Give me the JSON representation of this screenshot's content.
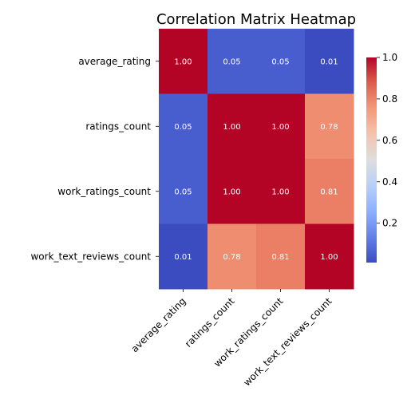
{
  "chart_data": {
    "type": "heatmap",
    "title": "Correlation Matrix Heatmap",
    "xlabel": "",
    "ylabel": "",
    "rows": [
      "average_rating",
      "ratings_count",
      "work_ratings_count",
      "work_text_reviews_count"
    ],
    "columns": [
      "average_rating",
      "ratings_count",
      "work_ratings_count",
      "work_text_reviews_count"
    ],
    "values": [
      [
        1.0,
        0.05,
        0.05,
        0.01
      ],
      [
        0.05,
        1.0,
        1.0,
        0.78
      ],
      [
        0.05,
        1.0,
        1.0,
        0.81
      ],
      [
        0.01,
        0.78,
        0.81,
        1.0
      ]
    ],
    "cell_labels": [
      [
        "1.00",
        "0.05",
        "0.05",
        "0.01"
      ],
      [
        "0.05",
        "1.00",
        "1.00",
        "0.78"
      ],
      [
        "0.05",
        "1.00",
        "1.00",
        "0.81"
      ],
      [
        "0.01",
        "0.78",
        "0.81",
        "1.00"
      ]
    ],
    "colormap": "coolwarm",
    "colorbar": {
      "range": [
        0.01,
        1.0
      ],
      "ticks": [
        0.2,
        0.4,
        0.6,
        0.8,
        1.0
      ],
      "tick_labels": [
        "0.2",
        "0.4",
        "0.6",
        "0.8",
        "1.0"
      ],
      "placement": "right"
    },
    "grid": false,
    "x_tick_rotation": 45
  }
}
